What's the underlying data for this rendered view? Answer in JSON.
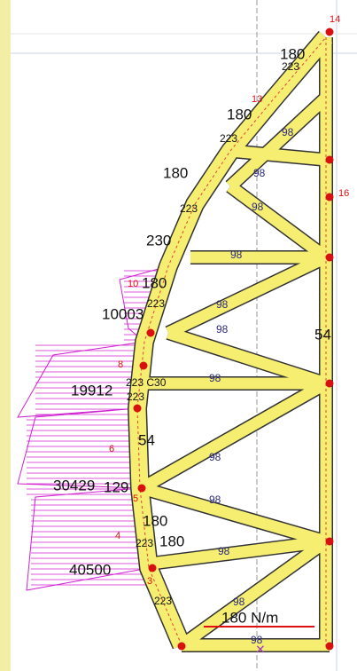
{
  "labels": [
    "14",
    "180",
    "223",
    "13",
    "180",
    "98",
    "223",
    "16",
    "180",
    "98",
    "223",
    "98",
    "230",
    "98",
    "10",
    "180",
    "223",
    "10003",
    "98",
    "54",
    "98",
    "8",
    "223 C30",
    "19912",
    "98",
    "223",
    "6",
    "54",
    "98",
    "30429",
    "129",
    "98",
    "5",
    "180",
    "4",
    "223",
    "180",
    "98",
    "40500",
    "3",
    "223",
    "98",
    "180 N/m",
    "98"
  ]
}
